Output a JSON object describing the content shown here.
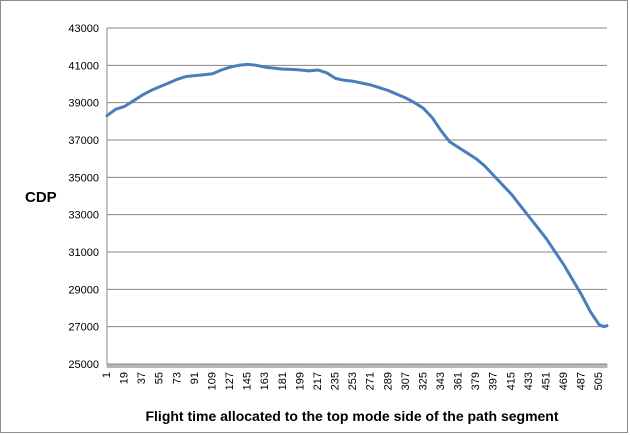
{
  "chart_data": {
    "type": "line",
    "title": "",
    "xlabel": "Flight time allocated to the top mode side of the path segment",
    "ylabel": "CDP",
    "ylim": [
      25000,
      43000
    ],
    "yticks": [
      25000,
      27000,
      29000,
      31000,
      33000,
      35000,
      37000,
      39000,
      41000,
      43000
    ],
    "xlim": [
      1,
      513
    ],
    "xticks": [
      1,
      19,
      37,
      55,
      73,
      91,
      109,
      127,
      145,
      163,
      181,
      199,
      217,
      235,
      253,
      271,
      289,
      307,
      325,
      343,
      361,
      379,
      397,
      415,
      433,
      451,
      469,
      487,
      505
    ],
    "grid": "horizontal",
    "legend": "none",
    "line_color": "#4a7ebb",
    "series": [
      {
        "x": [
          1,
          10,
          19,
          28,
          37,
          46,
          55,
          64,
          73,
          82,
          91,
          100,
          109,
          118,
          127,
          136,
          145,
          154,
          163,
          172,
          181,
          190,
          199,
          208,
          217,
          226,
          235,
          244,
          253,
          262,
          271,
          280,
          289,
          298,
          307,
          316,
          325,
          334,
          343,
          352,
          361,
          370,
          379,
          388,
          397,
          406,
          415,
          424,
          433,
          442,
          451,
          460,
          469,
          478,
          487,
          496,
          505,
          510,
          513
        ],
        "y": [
          38300,
          38650,
          38800,
          39100,
          39400,
          39650,
          39850,
          40050,
          40250,
          40400,
          40450,
          40500,
          40550,
          40750,
          40900,
          41000,
          41050,
          41000,
          40900,
          40850,
          40800,
          40780,
          40750,
          40700,
          40750,
          40600,
          40300,
          40200,
          40150,
          40050,
          39950,
          39800,
          39650,
          39450,
          39250,
          39000,
          38700,
          38200,
          37500,
          36900,
          36600,
          36300,
          36000,
          35600,
          35100,
          34600,
          34100,
          33500,
          32900,
          32300,
          31700,
          31000,
          30300,
          29500,
          28700,
          27800,
          27100,
          27000,
          27050
        ]
      }
    ]
  }
}
